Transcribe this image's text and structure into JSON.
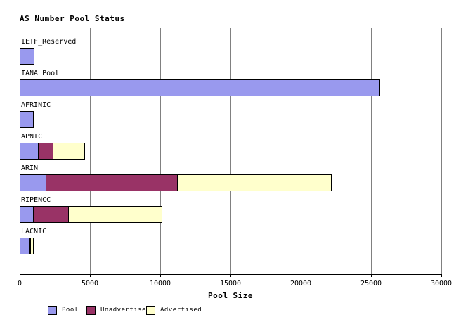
{
  "title": "AS Number Pool Status",
  "chart_data": {
    "type": "bar",
    "orientation": "horizontal",
    "stacked": true,
    "title": "AS Number Pool Status",
    "xlabel": "Pool Size",
    "ylabel": "",
    "xlim": [
      0,
      30000
    ],
    "x_ticks": [
      0,
      5000,
      10000,
      15000,
      20000,
      25000,
      30000
    ],
    "grid": true,
    "legend_position": "bottom",
    "categories": [
      "IETF_Reserved",
      "IANA_Pool",
      "AFRINIC",
      "APNIC",
      "ARIN",
      "RIPENCC",
      "LACNIC"
    ],
    "series": [
      {
        "name": "Pool",
        "color": "#9999ee",
        "values": [
          1050,
          25650,
          1000,
          1350,
          1900,
          1000,
          700
        ]
      },
      {
        "name": "Unadvertised",
        "color": "#993366",
        "values": [
          0,
          0,
          0,
          1050,
          9325,
          2500,
          75
        ]
      },
      {
        "name": "Advertised",
        "color": "#ffffcc",
        "values": [
          0,
          0,
          0,
          2250,
          10975,
          6650,
          225
        ]
      }
    ]
  },
  "colors": {
    "background": "#ffffff",
    "gridline": "#808080",
    "axis": "#000000",
    "bar_border": "#000000",
    "text": "#000000"
  }
}
